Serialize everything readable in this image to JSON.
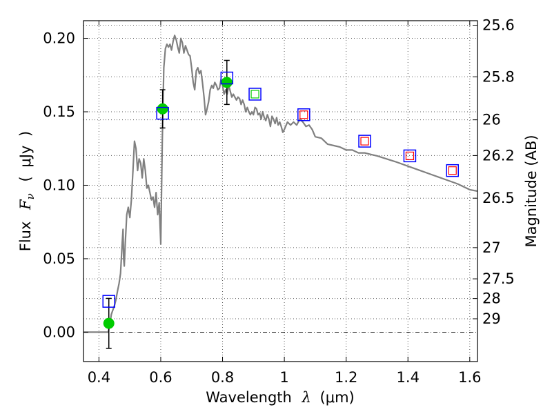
{
  "chart_data": {
    "type": "line",
    "title": "",
    "xlabel": {
      "prefix": "Wavelength",
      "symbol": "λ",
      "unit_open": "(",
      "unit": "μm",
      "unit_close": ")"
    },
    "ylabel": {
      "prefix": "Flux",
      "symbol": "F",
      "subscript": "ν",
      "unit_open": "(",
      "unit": "μJy",
      "unit_close": ")"
    },
    "ylabel_right": "Magnitude (AB)",
    "xlim": [
      0.35,
      1.625
    ],
    "ylim": [
      -0.02,
      0.212
    ],
    "grid": true,
    "x_ticks": [
      {
        "value": 0.4,
        "label": "0.4"
      },
      {
        "value": 0.6,
        "label": "0.6"
      },
      {
        "value": 0.8,
        "label": "0.8"
      },
      {
        "value": 1.0,
        "label": "1"
      },
      {
        "value": 1.2,
        "label": "1.2"
      },
      {
        "value": 1.4,
        "label": "1.4"
      },
      {
        "value": 1.6,
        "label": "1.6"
      }
    ],
    "y_ticks": [
      {
        "value": 0.0,
        "label": "0.00"
      },
      {
        "value": 0.05,
        "label": "0.05"
      },
      {
        "value": 0.1,
        "label": "0.10"
      },
      {
        "value": 0.15,
        "label": "0.15"
      },
      {
        "value": 0.2,
        "label": "0.20"
      }
    ],
    "mag_ticks": [
      {
        "value": 25.6,
        "label": "25.6"
      },
      {
        "value": 25.8,
        "label": "25.8"
      },
      {
        "value": 26.0,
        "label": "26"
      },
      {
        "value": 26.2,
        "label": "26.2"
      },
      {
        "value": 26.5,
        "label": "26.5"
      },
      {
        "value": 27.0,
        "label": "27"
      },
      {
        "value": 27.5,
        "label": "27.5"
      },
      {
        "value": 28.0,
        "label": "28"
      },
      {
        "value": 29.0,
        "label": "29"
      }
    ],
    "model_sed": {
      "color": "#808080",
      "x": [
        0.35,
        0.43,
        0.435,
        0.44,
        0.445,
        0.45,
        0.455,
        0.46,
        0.465,
        0.47,
        0.475,
        0.478,
        0.48,
        0.482,
        0.485,
        0.49,
        0.495,
        0.5,
        0.505,
        0.51,
        0.515,
        0.52,
        0.525,
        0.53,
        0.535,
        0.54,
        0.545,
        0.55,
        0.555,
        0.56,
        0.565,
        0.57,
        0.575,
        0.58,
        0.585,
        0.59,
        0.595,
        0.6,
        0.605,
        0.61,
        0.615,
        0.62,
        0.625,
        0.63,
        0.635,
        0.64,
        0.645,
        0.65,
        0.655,
        0.66,
        0.665,
        0.67,
        0.675,
        0.68,
        0.685,
        0.69,
        0.695,
        0.7,
        0.705,
        0.71,
        0.715,
        0.72,
        0.725,
        0.73,
        0.735,
        0.74,
        0.745,
        0.75,
        0.755,
        0.76,
        0.765,
        0.77,
        0.775,
        0.78,
        0.785,
        0.79,
        0.795,
        0.8,
        0.805,
        0.81,
        0.815,
        0.82,
        0.825,
        0.83,
        0.835,
        0.84,
        0.845,
        0.85,
        0.855,
        0.86,
        0.865,
        0.87,
        0.875,
        0.88,
        0.885,
        0.89,
        0.895,
        0.9,
        0.905,
        0.91,
        0.915,
        0.92,
        0.925,
        0.93,
        0.935,
        0.94,
        0.945,
        0.95,
        0.955,
        0.96,
        0.965,
        0.97,
        0.975,
        0.98,
        0.985,
        0.99,
        0.995,
        1.0,
        1.01,
        1.02,
        1.03,
        1.04,
        1.05,
        1.06,
        1.07,
        1.08,
        1.09,
        1.1,
        1.12,
        1.14,
        1.16,
        1.18,
        1.2,
        1.22,
        1.24,
        1.26,
        1.28,
        1.3,
        1.33,
        1.36,
        1.4,
        1.44,
        1.48,
        1.52,
        1.56,
        1.6,
        1.625
      ],
      "y": [
        0.0,
        0.0,
        0.005,
        0.012,
        0.015,
        0.018,
        0.022,
        0.028,
        0.033,
        0.04,
        0.06,
        0.07,
        0.05,
        0.045,
        0.06,
        0.08,
        0.085,
        0.078,
        0.09,
        0.11,
        0.13,
        0.125,
        0.11,
        0.118,
        0.115,
        0.105,
        0.118,
        0.11,
        0.098,
        0.1,
        0.095,
        0.09,
        0.092,
        0.085,
        0.095,
        0.08,
        0.088,
        0.06,
        0.13,
        0.18,
        0.193,
        0.196,
        0.194,
        0.196,
        0.192,
        0.198,
        0.202,
        0.199,
        0.194,
        0.19,
        0.2,
        0.197,
        0.19,
        0.195,
        0.192,
        0.189,
        0.188,
        0.18,
        0.17,
        0.165,
        0.178,
        0.18,
        0.176,
        0.178,
        0.17,
        0.16,
        0.148,
        0.152,
        0.157,
        0.165,
        0.168,
        0.166,
        0.17,
        0.168,
        0.165,
        0.166,
        0.172,
        0.168,
        0.162,
        0.165,
        0.162,
        0.168,
        0.164,
        0.16,
        0.162,
        0.16,
        0.158,
        0.16,
        0.159,
        0.155,
        0.158,
        0.155,
        0.15,
        0.153,
        0.15,
        0.148,
        0.15,
        0.148,
        0.153,
        0.152,
        0.148,
        0.149,
        0.145,
        0.15,
        0.146,
        0.144,
        0.148,
        0.145,
        0.14,
        0.147,
        0.145,
        0.142,
        0.146,
        0.141,
        0.143,
        0.14,
        0.136,
        0.138,
        0.143,
        0.141,
        0.143,
        0.141,
        0.145,
        0.143,
        0.14,
        0.141,
        0.138,
        0.133,
        0.132,
        0.128,
        0.127,
        0.126,
        0.124,
        0.124,
        0.122,
        0.122,
        0.121,
        0.12,
        0.118,
        0.116,
        0.113,
        0.11,
        0.107,
        0.104,
        0.101,
        0.097,
        0.096
      ]
    },
    "observed": {
      "color": "#00cc00",
      "x": [
        0.432,
        0.606,
        0.814
      ],
      "y": [
        0.006,
        0.152,
        0.17
      ],
      "err": [
        0.017,
        0.013,
        0.015
      ]
    },
    "model_photometry": {
      "edge_color": "#0000ff",
      "x": [
        0.432,
        0.606,
        0.814,
        0.905,
        1.063,
        1.26,
        1.406,
        1.544
      ],
      "y": [
        0.021,
        0.149,
        0.173,
        0.162,
        0.148,
        0.13,
        0.12,
        0.11
      ],
      "inner_color": [
        "",
        "",
        "",
        "#00cc00",
        "#ff0000",
        "#ff0000",
        "#ff0000",
        "#ff0000"
      ]
    },
    "colors": {
      "grid": "#555555",
      "zero_line": "#000000"
    }
  }
}
